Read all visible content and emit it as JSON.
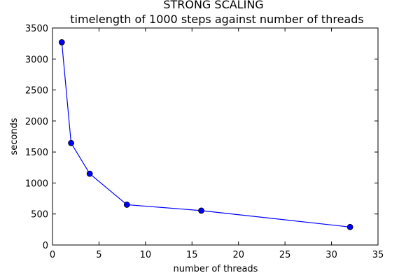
{
  "chart_data": {
    "type": "line",
    "title": "STRONG SCALING",
    "subtitle": "timelength of 1000 steps against number of threads",
    "xlabel": "number of threads",
    "ylabel": "seconds",
    "xlim": [
      0,
      35
    ],
    "ylim": [
      0,
      3500
    ],
    "xticks": [
      0,
      5,
      10,
      15,
      20,
      25,
      30,
      35
    ],
    "yticks": [
      0,
      500,
      1000,
      1500,
      2000,
      2500,
      3000,
      3500
    ],
    "grid": false,
    "series": [
      {
        "x": [
          1,
          2,
          4,
          8,
          16,
          32
        ],
        "y": [
          3270,
          1645,
          1150,
          650,
          555,
          290
        ],
        "color": "#0000ff",
        "marker": "circle"
      }
    ]
  }
}
